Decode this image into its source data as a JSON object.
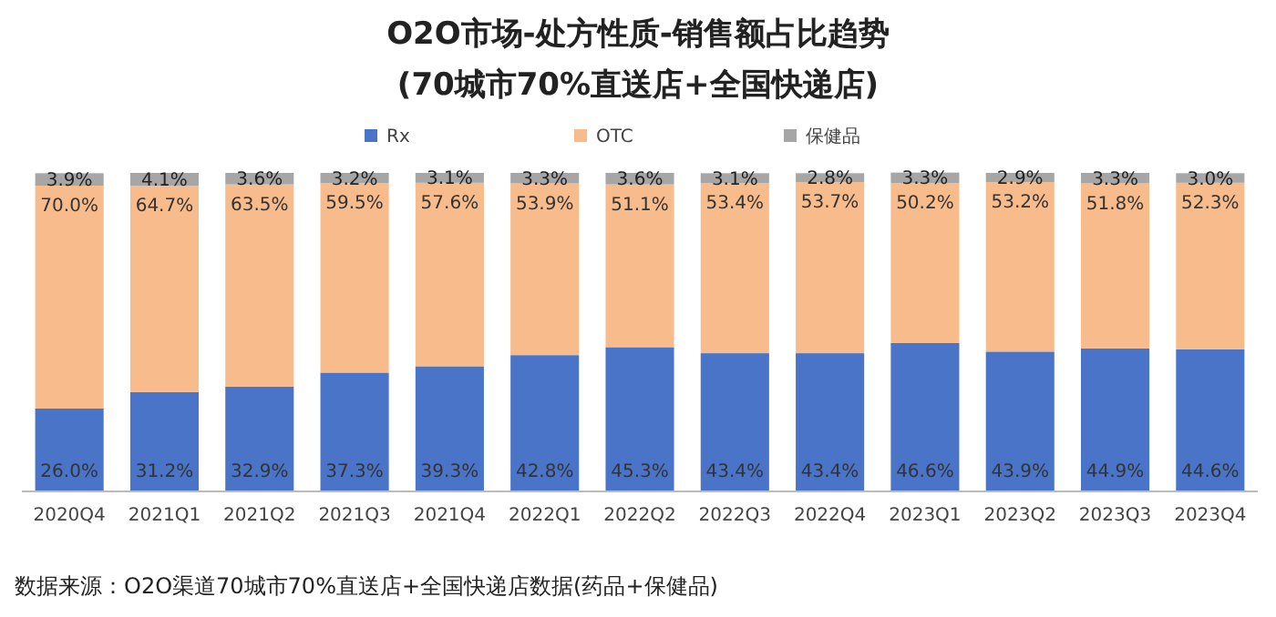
{
  "chart_data": {
    "type": "bar",
    "stacked": true,
    "legend": "top",
    "title": "O2O市场-处方性质-销售额占比趋势",
    "subtitle": "(70城市70%直送店+全国快递店)",
    "categories": [
      "2020Q4",
      "2021Q1",
      "2021Q2",
      "2021Q3",
      "2021Q4",
      "2022Q1",
      "2022Q2",
      "2022Q3",
      "2022Q4",
      "2023Q1",
      "2023Q2",
      "2023Q3",
      "2023Q4"
    ],
    "series": [
      {
        "name": "Rx",
        "color": "#4a74c8",
        "values": [
          26.0,
          31.2,
          32.9,
          37.3,
          39.3,
          42.8,
          45.3,
          43.4,
          43.4,
          46.6,
          43.9,
          44.9,
          44.6
        ],
        "value_labels": [
          "26.0%",
          "31.2%",
          "32.9%",
          "37.3%",
          "39.3%",
          "42.8%",
          "45.3%",
          "43.4%",
          "43.4%",
          "46.6%",
          "43.9%",
          "44.9%",
          "44.6%"
        ]
      },
      {
        "name": "OTC",
        "color": "#f7bb8c",
        "values": [
          70.0,
          64.7,
          63.5,
          59.5,
          57.6,
          53.9,
          51.1,
          53.4,
          53.7,
          50.2,
          53.2,
          51.8,
          52.3
        ],
        "value_labels": [
          "70.0%",
          "64.7%",
          "63.5%",
          "59.5%",
          "57.6%",
          "53.9%",
          "51.1%",
          "53.4%",
          "53.7%",
          "50.2%",
          "53.2%",
          "51.8%",
          "52.3%"
        ]
      },
      {
        "name": "保健品",
        "color": "#a6a6a6",
        "values": [
          3.9,
          4.1,
          3.6,
          3.2,
          3.1,
          3.3,
          3.6,
          3.1,
          2.8,
          3.3,
          2.9,
          3.3,
          3.0
        ],
        "value_labels": [
          "3.9%",
          "4.1%",
          "3.6%",
          "3.2%",
          "3.1%",
          "3.3%",
          "3.6%",
          "3.1%",
          "2.8%",
          "3.3%",
          "2.9%",
          "3.3%",
          "3.0%"
        ]
      }
    ],
    "annotations": [
      "数据来源：O2O渠道70城市70%直送店+全国快递店数据(药品+保健品)"
    ]
  }
}
